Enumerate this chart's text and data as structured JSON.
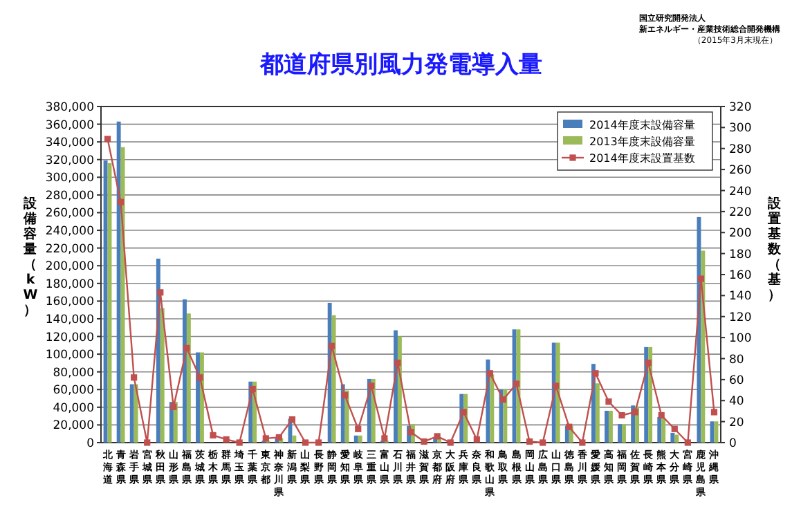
{
  "chart_data": {
    "type": "bar",
    "title": "都道府県別風力発電導入量",
    "ylabel": "設備容量（kW）",
    "y2label": "設置基数（基）",
    "annotations": [
      "国立研究開発法人",
      "新エネルギー・産業技術総合開発機構",
      "（2015年3月末現在）"
    ],
    "categories": [
      "北海道",
      "青森県",
      "岩手県",
      "宮城県",
      "秋田県",
      "山形県",
      "福島県",
      "茨城県",
      "栃木県",
      "群馬県",
      "埼玉県",
      "千葉県",
      "東京都",
      "神奈川県",
      "新潟県",
      "山梨県",
      "長野県",
      "静岡県",
      "愛知県",
      "岐阜県",
      "三重県",
      "富山県",
      "石川県",
      "福井県",
      "滋賀県",
      "京都府",
      "大阪府",
      "兵庫県",
      "奈良県",
      "和歌山県",
      "鳥取県",
      "島根県",
      "岡山県",
      "広島県",
      "山口県",
      "徳島県",
      "香川県",
      "愛媛県",
      "高知県",
      "福岡県",
      "佐賀県",
      "長崎県",
      "熊本県",
      "大分県",
      "宮崎県",
      "鹿児島県",
      "沖縄県"
    ],
    "series": [
      {
        "name": "2014年度末設備容量",
        "color": "#4a7ebb",
        "values": [
          319000,
          363000,
          66000,
          null,
          208000,
          46000,
          162000,
          102000,
          null,
          null,
          null,
          69000,
          2000,
          5000,
          27000,
          null,
          null,
          158000,
          66000,
          8000,
          72000,
          2000,
          127000,
          19000,
          null,
          5000,
          null,
          55000,
          null,
          94000,
          60000,
          128000,
          null,
          null,
          113000,
          19000,
          null,
          89000,
          36000,
          21000,
          42000,
          108000,
          29000,
          11000,
          null,
          255000,
          24000
        ]
      },
      {
        "name": "2013年度末設備容量",
        "color": "#9bbb59",
        "values": [
          316000,
          334000,
          66000,
          null,
          152000,
          46000,
          146000,
          102000,
          null,
          null,
          null,
          69000,
          2000,
          5000,
          8000,
          null,
          null,
          144000,
          59000,
          8000,
          72000,
          2000,
          120000,
          21000,
          null,
          5000,
          null,
          55000,
          null,
          77000,
          60000,
          128000,
          null,
          null,
          113000,
          19000,
          null,
          67000,
          36000,
          21000,
          41000,
          108000,
          28000,
          9000,
          null,
          217000,
          24000
        ]
      },
      {
        "name": "2014年度末設置基数",
        "type": "line",
        "axis": "y2",
        "color": "#c0504d",
        "marker": "square",
        "values": [
          289,
          229,
          62,
          0,
          143,
          34,
          90,
          62,
          7,
          3,
          0,
          51,
          4,
          5,
          22,
          0,
          0,
          92,
          45,
          13,
          54,
          4,
          76,
          10,
          1,
          6,
          0,
          29,
          3,
          66,
          41,
          56,
          1,
          0,
          54,
          15,
          0,
          66,
          39,
          26,
          29,
          76,
          26,
          13,
          0,
          156,
          29
        ]
      }
    ],
    "ylim": [
      0,
      380000
    ],
    "yticks": [
      0,
      {
        "value": 20000,
        "label": "20,000"
      },
      {
        "value": 40000,
        "label": "40,000"
      },
      {
        "value": 60000,
        "label": "60,000"
      },
      {
        "value": 80000,
        "label": "80,000"
      },
      {
        "value": 100000,
        "label": "100,000"
      },
      {
        "value": 120000,
        "label": "120,000"
      },
      {
        "value": 140000,
        "label": "140,000"
      },
      {
        "value": 160000,
        "label": "160,000"
      },
      {
        "value": 180000,
        "label": "180,000"
      },
      {
        "value": 200000,
        "label": "200,000"
      },
      {
        "value": 220000,
        "label": "220,000"
      },
      {
        "value": 240000,
        "label": "240,000"
      },
      {
        "value": 260000,
        "label": "260,000"
      },
      {
        "value": 280000,
        "label": "280,000"
      },
      {
        "value": 300000,
        "label": "300,000"
      },
      {
        "value": 320000,
        "label": "320,000"
      },
      {
        "value": 340000,
        "label": "340,000"
      },
      {
        "value": 360000,
        "label": "360,000"
      },
      {
        "value": 380000,
        "label": "380,000"
      }
    ],
    "y2lim": [
      0,
      320
    ],
    "y2ticks": [
      0,
      20,
      40,
      60,
      80,
      100,
      120,
      140,
      160,
      180,
      200,
      220,
      240,
      260,
      280,
      300,
      320
    ],
    "grid": "y",
    "legend": "top right"
  }
}
